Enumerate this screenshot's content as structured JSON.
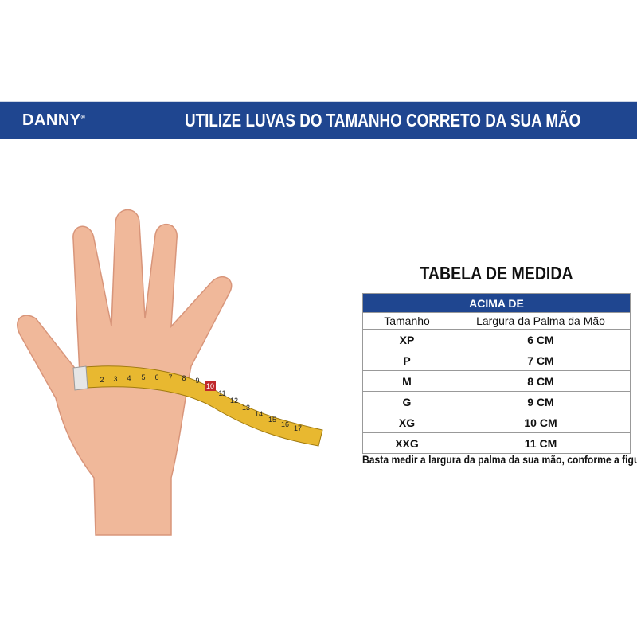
{
  "banner": {
    "brand": "DANNY",
    "headline": "UTILIZE LUVAS DO TAMANHO CORRETO DA SUA MÃO"
  },
  "table": {
    "title": "TABELA DE MEDIDA",
    "group_header": "ACIMA DE",
    "columns": [
      "Tamanho",
      "Largura da Palma da Mão"
    ],
    "rows": [
      {
        "size": "XP",
        "width": "6 CM"
      },
      {
        "size": "P",
        "width": "7 CM"
      },
      {
        "size": "M",
        "width": "8 CM"
      },
      {
        "size": "G",
        "width": "9 CM"
      },
      {
        "size": "XG",
        "width": "10 CM"
      },
      {
        "size": "XXG",
        "width": "11 CM"
      }
    ],
    "caption": "Basta medir a largura da palma da sua mão, conforme a figura"
  },
  "tape": {
    "numbers": [
      "2",
      "3",
      "4",
      "5",
      "6",
      "7",
      "8",
      "9",
      "10",
      "11",
      "12",
      "13",
      "14",
      "15",
      "16",
      "17"
    ],
    "highlight": "10"
  },
  "colors": {
    "brand_blue": "#1f4690",
    "tape_yellow": "#e8b830",
    "highlight_red": "#c0282c",
    "skin": "#f0b89a"
  }
}
